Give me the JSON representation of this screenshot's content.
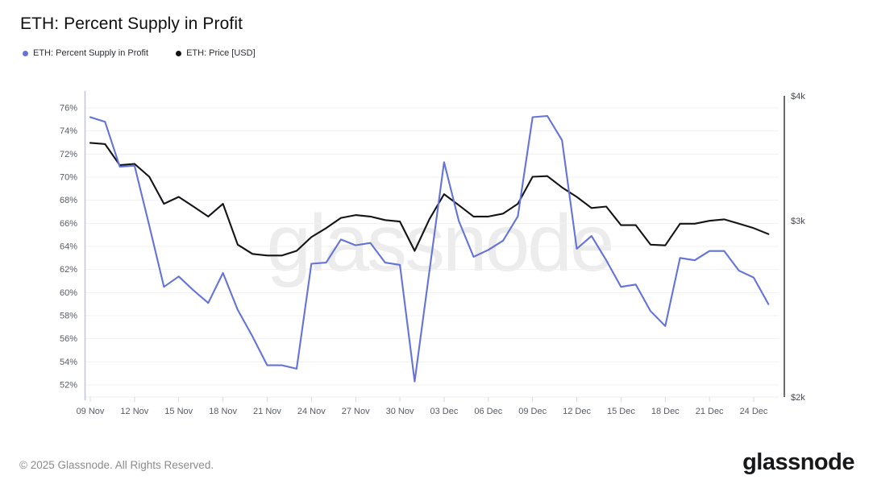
{
  "header": {
    "title": "ETH: Percent Supply in Profit"
  },
  "legend": {
    "items": [
      {
        "label": "ETH: Percent Supply in Profit",
        "color": "#6373d9"
      },
      {
        "label": "ETH: Price [USD]",
        "color": "#131417"
      }
    ]
  },
  "watermark": {
    "text": "glassnode",
    "color": "#ececec"
  },
  "chart_data": {
    "type": "line",
    "title": "ETH: Percent Supply in Profit",
    "x": [
      "09 Nov",
      "10 Nov",
      "11 Nov",
      "12 Nov",
      "13 Nov",
      "14 Nov",
      "15 Nov",
      "16 Nov",
      "17 Nov",
      "18 Nov",
      "19 Nov",
      "20 Nov",
      "21 Nov",
      "22 Nov",
      "23 Nov",
      "24 Nov",
      "25 Nov",
      "26 Nov",
      "27 Nov",
      "28 Nov",
      "29 Nov",
      "30 Nov",
      "01 Dec",
      "02 Dec",
      "03 Dec",
      "04 Dec",
      "05 Dec",
      "06 Dec",
      "07 Dec",
      "08 Dec",
      "09 Dec",
      "10 Dec",
      "11 Dec",
      "12 Dec",
      "13 Dec",
      "14 Dec",
      "15 Dec",
      "16 Dec",
      "17 Dec",
      "18 Dec",
      "19 Dec",
      "20 Dec",
      "21 Dec",
      "22 Dec",
      "23 Dec",
      "24 Dec",
      "25 Dec"
    ],
    "x_tick_labels": [
      "09 Nov",
      "12 Nov",
      "15 Nov",
      "18 Nov",
      "21 Nov",
      "24 Nov",
      "27 Nov",
      "30 Nov",
      "03 Dec",
      "06 Dec",
      "09 Dec",
      "12 Dec",
      "15 Dec",
      "18 Dec",
      "21 Dec",
      "24 Dec"
    ],
    "series": [
      {
        "name": "ETH: Percent Supply in Profit",
        "axis": "left",
        "unit": "%",
        "color": "#6373d9",
        "values": [
          75.2,
          74.8,
          70.9,
          71.0,
          65.8,
          60.5,
          61.4,
          60.2,
          59.1,
          61.7,
          58.5,
          56.2,
          53.7,
          53.7,
          53.4,
          62.5,
          62.6,
          64.6,
          64.1,
          64.3,
          62.6,
          62.4,
          52.3,
          61.8,
          71.3,
          66.2,
          63.1,
          63.7,
          64.5,
          66.6,
          75.2,
          75.3,
          73.2,
          63.8,
          64.9,
          62.8,
          60.5,
          60.7,
          58.4,
          57.1,
          63.0,
          62.8,
          63.6,
          63.6,
          61.9,
          61.3,
          59.0
        ]
      },
      {
        "name": "ETH: Price [USD]",
        "axis": "right",
        "unit": "USD",
        "color": "#131417",
        "values": [
          3590,
          3580,
          3410,
          3420,
          3320,
          3120,
          3170,
          3100,
          3030,
          3120,
          2840,
          2780,
          2770,
          2770,
          2800,
          2890,
          2950,
          3020,
          3040,
          3030,
          3005,
          2995,
          2800,
          3010,
          3190,
          3110,
          3030,
          3030,
          3050,
          3120,
          3320,
          3325,
          3240,
          3170,
          3090,
          3100,
          2970,
          2970,
          2840,
          2835,
          2980,
          2980,
          3000,
          3010,
          2980,
          2950,
          2910
        ]
      }
    ],
    "left_axis": {
      "ticks": [
        {
          "label": "76%",
          "value": 76
        },
        {
          "label": "74%",
          "value": 74
        },
        {
          "label": "72%",
          "value": 72
        },
        {
          "label": "70%",
          "value": 70
        },
        {
          "label": "68%",
          "value": 68
        },
        {
          "label": "66%",
          "value": 66
        },
        {
          "label": "64%",
          "value": 64
        },
        {
          "label": "62%",
          "value": 62
        },
        {
          "label": "60%",
          "value": 60
        },
        {
          "label": "58%",
          "value": 58
        },
        {
          "label": "56%",
          "value": 56
        },
        {
          "label": "54%",
          "value": 54
        },
        {
          "label": "52%",
          "value": 52
        }
      ],
      "grid": true
    },
    "right_axis": {
      "scale": "log",
      "ticks": [
        {
          "label": "$4k",
          "value": 4000
        },
        {
          "label": "$3k",
          "value": 3000
        },
        {
          "label": "$2k",
          "value": 2000
        }
      ],
      "grid": false
    },
    "legend_position": "top-left"
  },
  "footer": {
    "copyright": "© 2025 Glassnode. All Rights Reserved.",
    "logo": "glassnode"
  }
}
